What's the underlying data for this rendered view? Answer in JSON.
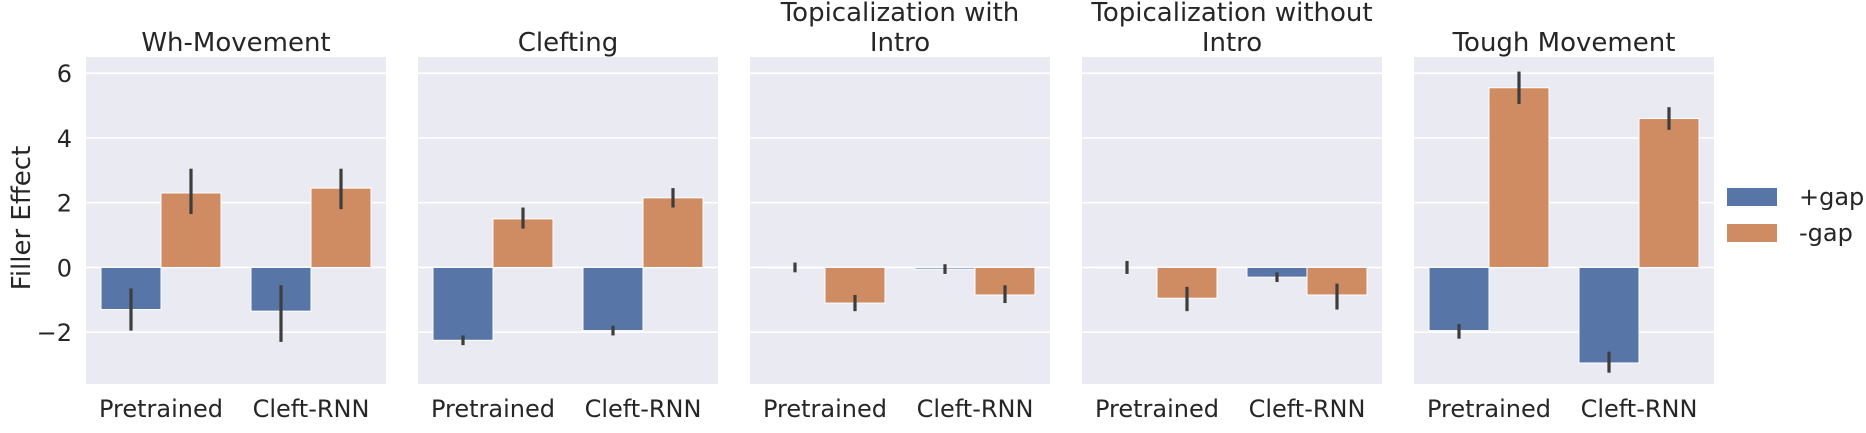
{
  "figure": {
    "ylabel": "Filler Effect",
    "legend_items": [
      {
        "label": "+gap",
        "color": "#5875A8"
      },
      {
        "label": "-gap",
        "color": "#CF8B61"
      }
    ],
    "facet_bg": "#EAEAF2",
    "grid_color": "#FFFFFF"
  },
  "chart_data": [
    {
      "type": "bar",
      "title_lines": [
        "Wh-Movement"
      ],
      "categories": [
        "Pretrained",
        "Cleft-RNN"
      ],
      "series": [
        {
          "name": "+gap",
          "values": [
            -1.3,
            -1.35
          ],
          "ci": [
            [
              -1.95,
              -0.65
            ],
            [
              -2.3,
              -0.55
            ]
          ]
        },
        {
          "name": "-gap",
          "values": [
            2.3,
            2.45
          ],
          "ci": [
            [
              1.65,
              3.05
            ],
            [
              1.8,
              3.05
            ]
          ]
        }
      ],
      "ylim": [
        -3.6,
        6.5
      ],
      "yticks": [
        -2,
        0,
        2,
        4,
        6
      ]
    },
    {
      "type": "bar",
      "title_lines": [
        "Clefting"
      ],
      "categories": [
        "Pretrained",
        "Cleft-RNN"
      ],
      "series": [
        {
          "name": "+gap",
          "values": [
            -2.25,
            -1.95
          ],
          "ci": [
            [
              -2.4,
              -2.1
            ],
            [
              -2.1,
              -1.8
            ]
          ]
        },
        {
          "name": "-gap",
          "values": [
            1.5,
            2.15
          ],
          "ci": [
            [
              1.2,
              1.85
            ],
            [
              1.85,
              2.45
            ]
          ]
        }
      ],
      "ylim": [
        -3.6,
        6.5
      ],
      "yticks": [
        -2,
        0,
        2,
        4,
        6
      ]
    },
    {
      "type": "bar",
      "title_lines": [
        "Topicalization with",
        "Intro"
      ],
      "categories": [
        "Pretrained",
        "Cleft-RNN"
      ],
      "series": [
        {
          "name": "+gap",
          "values": [
            0.0,
            -0.05
          ],
          "ci": [
            [
              -0.15,
              0.15
            ],
            [
              -0.2,
              0.1
            ]
          ]
        },
        {
          "name": "-gap",
          "values": [
            -1.1,
            -0.85
          ],
          "ci": [
            [
              -1.35,
              -0.85
            ],
            [
              -1.1,
              -0.55
            ]
          ]
        }
      ],
      "ylim": [
        -3.6,
        6.5
      ],
      "yticks": [
        -2,
        0,
        2,
        4,
        6
      ]
    },
    {
      "type": "bar",
      "title_lines": [
        "Topicalization without",
        "Intro"
      ],
      "categories": [
        "Pretrained",
        "Cleft-RNN"
      ],
      "series": [
        {
          "name": "+gap",
          "values": [
            0.0,
            -0.3
          ],
          "ci": [
            [
              -0.2,
              0.2
            ],
            [
              -0.45,
              -0.15
            ]
          ]
        },
        {
          "name": "-gap",
          "values": [
            -0.95,
            -0.85
          ],
          "ci": [
            [
              -1.35,
              -0.6
            ],
            [
              -1.3,
              -0.5
            ]
          ]
        }
      ],
      "ylim": [
        -3.6,
        6.5
      ],
      "yticks": [
        -2,
        0,
        2,
        4,
        6
      ]
    },
    {
      "type": "bar",
      "title_lines": [
        "Tough Movement"
      ],
      "categories": [
        "Pretrained",
        "Cleft-RNN"
      ],
      "series": [
        {
          "name": "+gap",
          "values": [
            -1.95,
            -2.95
          ],
          "ci": [
            [
              -2.2,
              -1.75
            ],
            [
              -3.25,
              -2.6
            ]
          ]
        },
        {
          "name": "-gap",
          "values": [
            5.55,
            4.6
          ],
          "ci": [
            [
              5.05,
              6.05
            ],
            [
              4.25,
              4.95
            ]
          ]
        }
      ],
      "ylim": [
        -3.6,
        6.5
      ],
      "yticks": [
        -2,
        0,
        2,
        4,
        6
      ]
    }
  ]
}
